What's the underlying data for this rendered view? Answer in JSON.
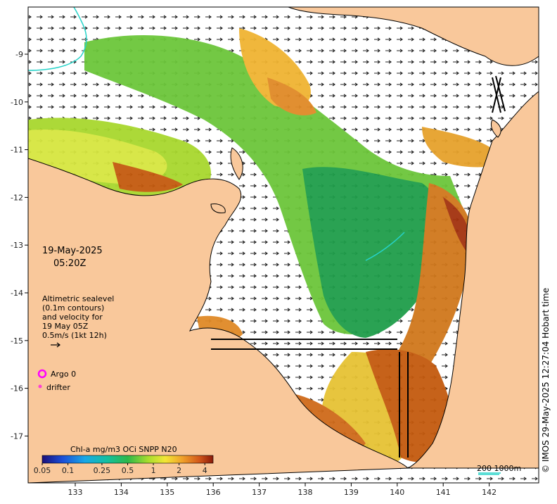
{
  "map": {
    "date": "19-May-2025",
    "time": "05:20Z",
    "legend_text": [
      "Altimetric sealevel",
      "(0.1m contours)",
      "and velocity for",
      "19 May 05Z",
      "0.5m/s (1kt 12h)"
    ],
    "argo_label": "Argo 0",
    "drifter_label": "drifter",
    "credit": "© IMOS 29-May-2025 12:27:04 Hobart time",
    "colorbar": {
      "title": "Chl-a mg/m3 OCi SNPP N20",
      "ticks": [
        "0.05",
        "0.1",
        "0.25",
        "0.5",
        "1",
        "2",
        "4"
      ],
      "tick_values": [
        0.05,
        0.1,
        0.25,
        0.5,
        1,
        2,
        4
      ],
      "range": [
        0.05,
        5
      ]
    },
    "scalebar": "200  1000m",
    "lon_ticks": [
      "133",
      "134",
      "135",
      "136",
      "137",
      "138",
      "139",
      "140",
      "141",
      "142"
    ],
    "lat_ticks": [
      "-9",
      "-10",
      "-11",
      "-12",
      "-13",
      "-14",
      "-15",
      "-16",
      "-17"
    ],
    "colors": {
      "land": "#f9c89b",
      "sea": "#ffffff",
      "contour": "#26d3c9",
      "argo": "#ff00ff",
      "drifter": "#ff3fd6",
      "chl_low": "#1e8a3a",
      "chl_mid": "#d5e83a",
      "chl_high": "#c45a0e"
    }
  }
}
